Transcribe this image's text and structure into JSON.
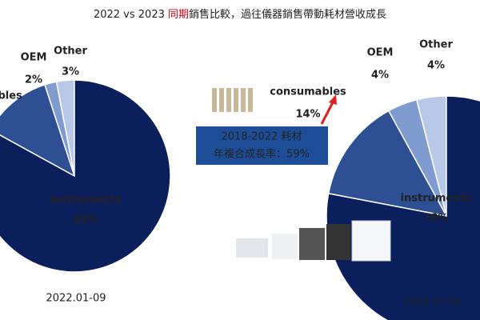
{
  "header": {
    "title_start": "2022 vs 2023 ",
    "title_highlight": "同期",
    "title_end": "銷售比較，過往儀器銷售帶動耗材營收成長"
  },
  "annotation": {
    "lines": [
      "2018-2022 耗材",
      "年複合成長率：59%"
    ]
  },
  "chart_data": [
    {
      "type": "pie",
      "caption": "2022.01-09",
      "categories": [
        "instruments",
        "consumables",
        "OEM",
        "Other"
      ],
      "values": [
        83,
        12,
        2,
        3
      ],
      "value_labels": [
        "83%",
        null,
        "2%",
        "3%"
      ],
      "colors": [
        "#0b1f5c",
        "#2e4f94",
        "#7f9bd0",
        "#b8c8e8"
      ]
    },
    {
      "type": "pie",
      "caption": "2023.01-09",
      "categories": [
        "instruments",
        "consumables",
        "OEM",
        "Other"
      ],
      "values": [
        78,
        14,
        4,
        4
      ],
      "value_labels": [
        "78%",
        "14%",
        "4%",
        "4%"
      ],
      "colors": [
        "#0b1f5c",
        "#2e4f94",
        "#7f9bd0",
        "#b8c8e8"
      ]
    }
  ]
}
